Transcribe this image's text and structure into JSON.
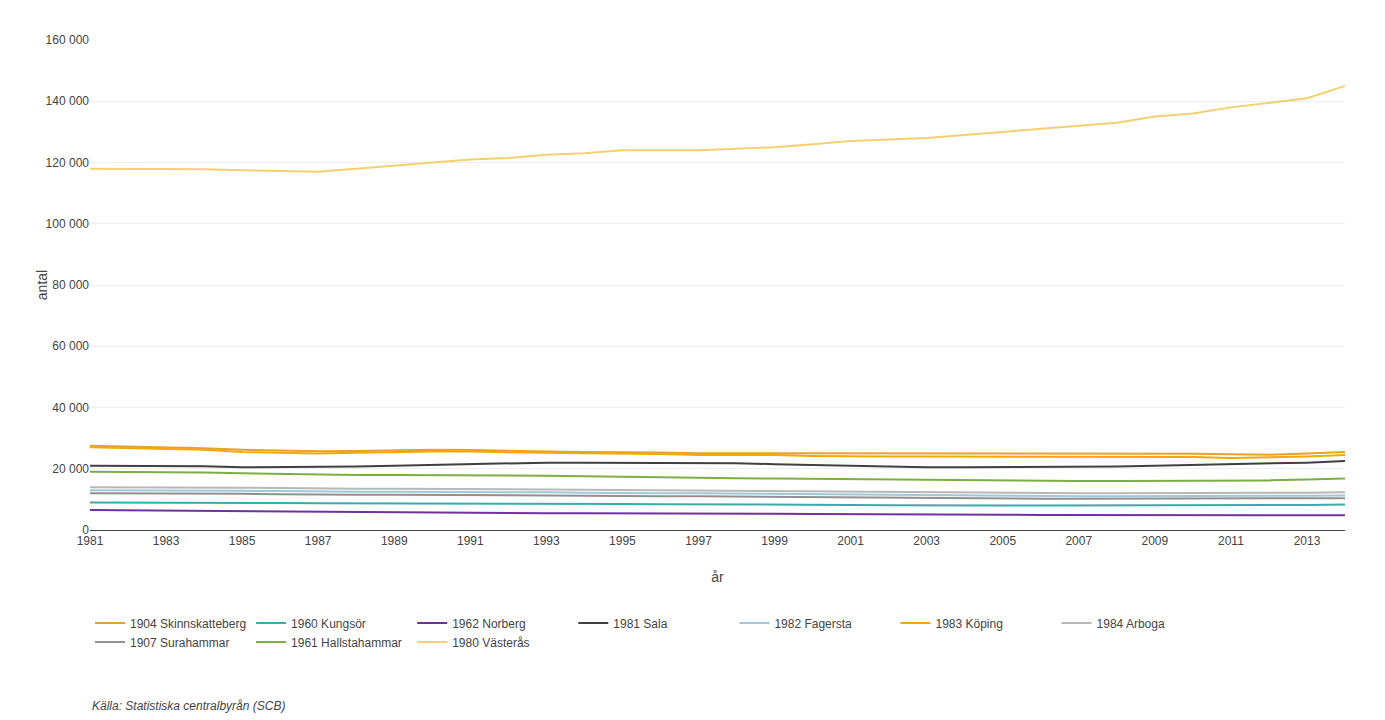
{
  "chart_data": {
    "type": "line",
    "x": [
      1981,
      1982,
      1983,
      1984,
      1985,
      1986,
      1987,
      1988,
      1989,
      1990,
      1991,
      1992,
      1993,
      1994,
      1995,
      1996,
      1997,
      1998,
      1999,
      2000,
      2001,
      2002,
      2003,
      2004,
      2005,
      2006,
      2007,
      2008,
      2009,
      2010,
      2011,
      2012,
      2013,
      2014
    ],
    "series": [
      {
        "name": "1904 Skinnskatteberg",
        "color": "#E8A030",
        "values": [
          27500,
          27300,
          27000,
          26700,
          26200,
          26000,
          25700,
          25800,
          26000,
          26200,
          26100,
          25800,
          25600,
          25500,
          25500,
          25300,
          25100,
          25100,
          25000,
          25000,
          25100,
          25100,
          25100,
          25100,
          25100,
          25100,
          25100,
          25100,
          25000,
          24900,
          24700,
          24600,
          25000,
          25500
        ]
      },
      {
        "name": "1960 Kungsör",
        "color": "#3AACA8",
        "values": [
          9000,
          9000,
          9000,
          8900,
          8800,
          8800,
          8700,
          8700,
          8700,
          8700,
          8700,
          8600,
          8500,
          8500,
          8500,
          8400,
          8400,
          8300,
          8200,
          8200,
          8200,
          8100,
          8000,
          8000,
          8000,
          8000,
          8000,
          8000,
          8000,
          8000,
          8000,
          8100,
          8200,
          8300
        ]
      },
      {
        "name": "1962 Norberg",
        "color": "#7030A0",
        "values": [
          6500,
          6400,
          6300,
          6200,
          6100,
          6000,
          5900,
          5900,
          5800,
          5800,
          5700,
          5600,
          5500,
          5500,
          5500,
          5400,
          5400,
          5300,
          5300,
          5200,
          5200,
          5100,
          5100,
          5000,
          5000,
          4900,
          4900,
          4900,
          4800,
          4800,
          4800,
          4800,
          4800,
          4800
        ]
      },
      {
        "name": "1981 Sala",
        "color": "#404040",
        "values": [
          21000,
          21000,
          21000,
          20800,
          20500,
          20500,
          20500,
          20700,
          21000,
          21300,
          21500,
          21800,
          22000,
          22000,
          22000,
          22000,
          22000,
          21800,
          21500,
          21200,
          21000,
          20800,
          20500,
          20500,
          20500,
          20500,
          20500,
          20700,
          21000,
          21200,
          21500,
          21700,
          22000,
          22500
        ]
      },
      {
        "name": "1982 Fagersta",
        "color": "#A0C8D8",
        "values": [
          13000,
          13000,
          13000,
          12900,
          12800,
          12700,
          12500,
          12500,
          12500,
          12500,
          12500,
          12400,
          12300,
          12200,
          12000,
          12000,
          12000,
          11900,
          11800,
          11700,
          11500,
          11400,
          11200,
          11100,
          11000,
          11000,
          11000,
          11000,
          11000,
          11000,
          11000,
          11100,
          11200,
          11300
        ]
      },
      {
        "name": "1983 Köping",
        "color": "#F5A800",
        "values": [
          27000,
          26800,
          26500,
          26200,
          25500,
          25300,
          25000,
          25200,
          25500,
          25600,
          25600,
          25300,
          25200,
          25100,
          25000,
          24800,
          24500,
          24500,
          24500,
          24200,
          24000,
          24000,
          24000,
          24000,
          24000,
          24000,
          24000,
          24000,
          24000,
          23800,
          23500,
          23700,
          24000,
          24500
        ]
      },
      {
        "name": "1984 Arboga",
        "color": "#B8B8B8",
        "values": [
          14000,
          14000,
          14000,
          13900,
          13800,
          13700,
          13500,
          13500,
          13500,
          13500,
          13500,
          13300,
          13200,
          13100,
          13000,
          13000,
          13000,
          12900,
          12800,
          12700,
          12500,
          12400,
          12200,
          12100,
          12000,
          12000,
          12000,
          12000,
          12000,
          12000,
          12000,
          12100,
          12200,
          12300
        ]
      },
      {
        "name": "1907 Surahammar",
        "color": "#909090",
        "values": [
          12000,
          12000,
          12000,
          11900,
          11800,
          11700,
          11500,
          11500,
          11500,
          11500,
          11500,
          11400,
          11300,
          11200,
          11000,
          11000,
          11000,
          10900,
          10800,
          10700,
          10500,
          10400,
          10300,
          10200,
          10200,
          10200,
          10200,
          10200,
          10200,
          10200,
          10200,
          10200,
          10300,
          10400
        ]
      },
      {
        "name": "1961 Hallstahammar",
        "color": "#7CAF40",
        "values": [
          19000,
          19000,
          19000,
          18800,
          18500,
          18300,
          18000,
          18000,
          18000,
          18000,
          18000,
          17800,
          17700,
          17500,
          17300,
          17100,
          17000,
          16900,
          16800,
          16700,
          16500,
          16400,
          16200,
          16100,
          16000,
          16000,
          16000,
          16000,
          16000,
          16000,
          16000,
          16200,
          16500,
          16800
        ]
      },
      {
        "name": "1980 Västerås",
        "color": "#F5D070",
        "values": [
          118000,
          118000,
          118000,
          117800,
          117500,
          117200,
          117000,
          118000,
          119000,
          120000,
          121000,
          121500,
          122500,
          123000,
          124000,
          124000,
          124000,
          124500,
          125000,
          126000,
          127000,
          127500,
          128000,
          129000,
          130000,
          131000,
          132000,
          133000,
          135000,
          136000,
          138000,
          139500,
          141000,
          145000
        ]
      }
    ],
    "xlabel": "år",
    "ylabel": "antal",
    "xlim": [
      1981,
      2014
    ],
    "xticks": [
      1981,
      1983,
      1985,
      1987,
      1989,
      1991,
      1993,
      1995,
      1997,
      1999,
      2001,
      2003,
      2005,
      2007,
      2009,
      2011,
      2013
    ],
    "ylim": [
      0,
      160000
    ],
    "yticks": [
      0,
      {
        "value": 20000,
        "label": "20 000"
      },
      {
        "value": 40000,
        "label": "40 000"
      },
      {
        "value": 60000,
        "label": "60 000"
      },
      {
        "value": 80000,
        "label": "80 000"
      },
      {
        "value": 100000,
        "label": "100 000"
      },
      {
        "value": 120000,
        "label": "120 000"
      },
      {
        "value": 140000,
        "label": "140 000"
      },
      {
        "value": 160000,
        "label": "160 000"
      }
    ],
    "grid": true,
    "legend": "bottom",
    "annotations": [
      "Källa: Statistiska centralbyrån (SCB)"
    ]
  }
}
